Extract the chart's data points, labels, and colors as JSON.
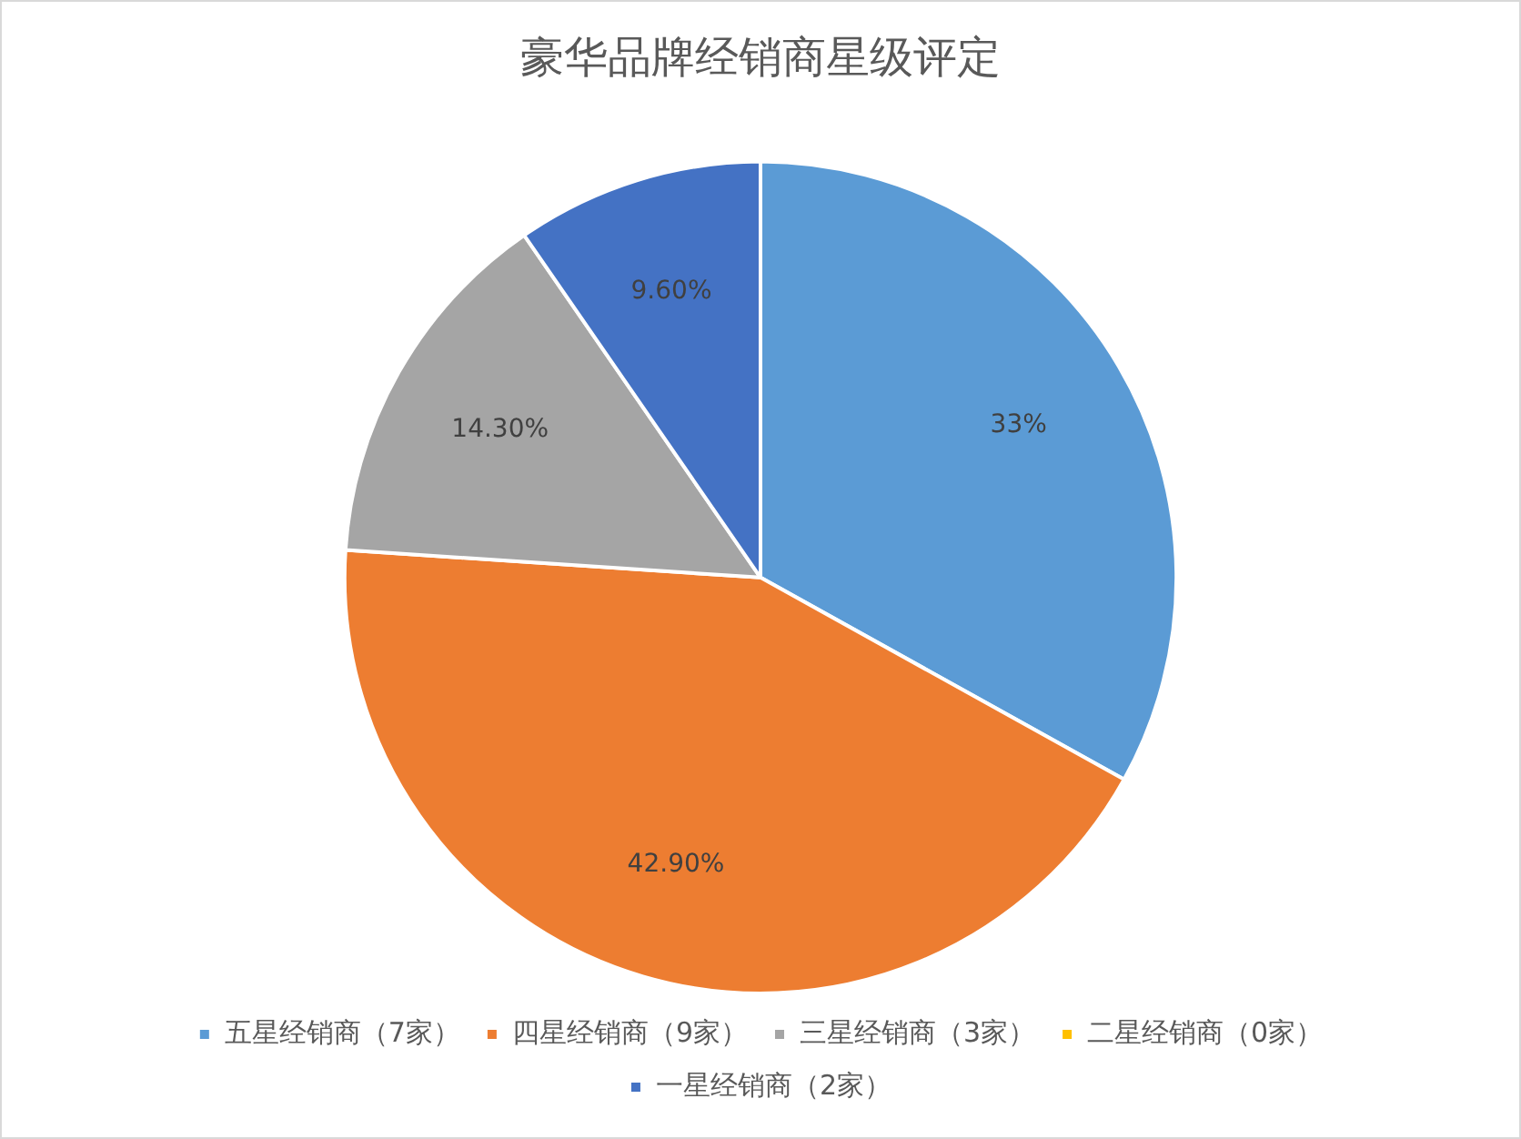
{
  "chart_data": {
    "type": "pie",
    "title": "豪华品牌经销商星级评定",
    "categories": [
      "五星经销商（7家）",
      "四星经销商（9家）",
      "三星经销商（3家）",
      "二星经销商（0家）",
      "一星经销商（2家）"
    ],
    "values": [
      33,
      42.9,
      14.3,
      0,
      9.6
    ],
    "value_labels": [
      "33%",
      "42.90%",
      "14.30%",
      null,
      "9.60%"
    ],
    "colors": [
      "#5b9bd5",
      "#ed7d31",
      "#a5a5a5",
      "#ffc000",
      "#4472c4"
    ],
    "legend": "bottom"
  }
}
